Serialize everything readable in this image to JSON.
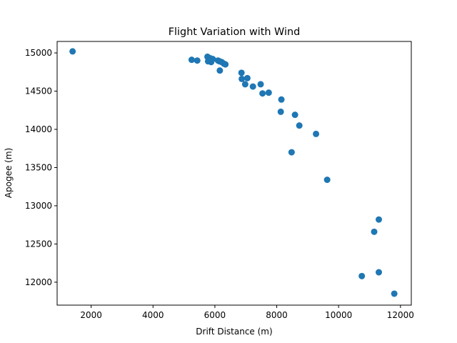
{
  "chart_data": {
    "type": "scatter",
    "title": "Flight Variation with Wind",
    "xlabel": "Drift Distance (m)",
    "ylabel": "Apogee (m)",
    "xlim": [
      900,
      12350
    ],
    "ylim": [
      11700,
      15150
    ],
    "xticks": [
      2000,
      4000,
      6000,
      8000,
      10000,
      12000
    ],
    "yticks": [
      12000,
      12500,
      13000,
      13500,
      14000,
      14500,
      15000
    ],
    "grid": false,
    "marker_color": "#1f77b4",
    "points": [
      {
        "x": 1400,
        "y": 15020
      },
      {
        "x": 5250,
        "y": 14910
      },
      {
        "x": 5430,
        "y": 14900
      },
      {
        "x": 5760,
        "y": 14950
      },
      {
        "x": 5780,
        "y": 14890
      },
      {
        "x": 5850,
        "y": 14930
      },
      {
        "x": 5880,
        "y": 14880
      },
      {
        "x": 5930,
        "y": 14920
      },
      {
        "x": 6100,
        "y": 14900
      },
      {
        "x": 6150,
        "y": 14890
      },
      {
        "x": 6220,
        "y": 14880
      },
      {
        "x": 6290,
        "y": 14860
      },
      {
        "x": 6340,
        "y": 14850
      },
      {
        "x": 6160,
        "y": 14770
      },
      {
        "x": 6860,
        "y": 14740
      },
      {
        "x": 6870,
        "y": 14660
      },
      {
        "x": 7050,
        "y": 14670
      },
      {
        "x": 6980,
        "y": 14590
      },
      {
        "x": 7230,
        "y": 14560
      },
      {
        "x": 7480,
        "y": 14590
      },
      {
        "x": 7540,
        "y": 14470
      },
      {
        "x": 7740,
        "y": 14480
      },
      {
        "x": 8150,
        "y": 14390
      },
      {
        "x": 8130,
        "y": 14230
      },
      {
        "x": 8590,
        "y": 14190
      },
      {
        "x": 8730,
        "y": 14050
      },
      {
        "x": 9270,
        "y": 13940
      },
      {
        "x": 8480,
        "y": 13700
      },
      {
        "x": 9630,
        "y": 13340
      },
      {
        "x": 11300,
        "y": 12820
      },
      {
        "x": 11150,
        "y": 12660
      },
      {
        "x": 10750,
        "y": 12080
      },
      {
        "x": 11300,
        "y": 12130
      },
      {
        "x": 11800,
        "y": 11850
      }
    ]
  }
}
